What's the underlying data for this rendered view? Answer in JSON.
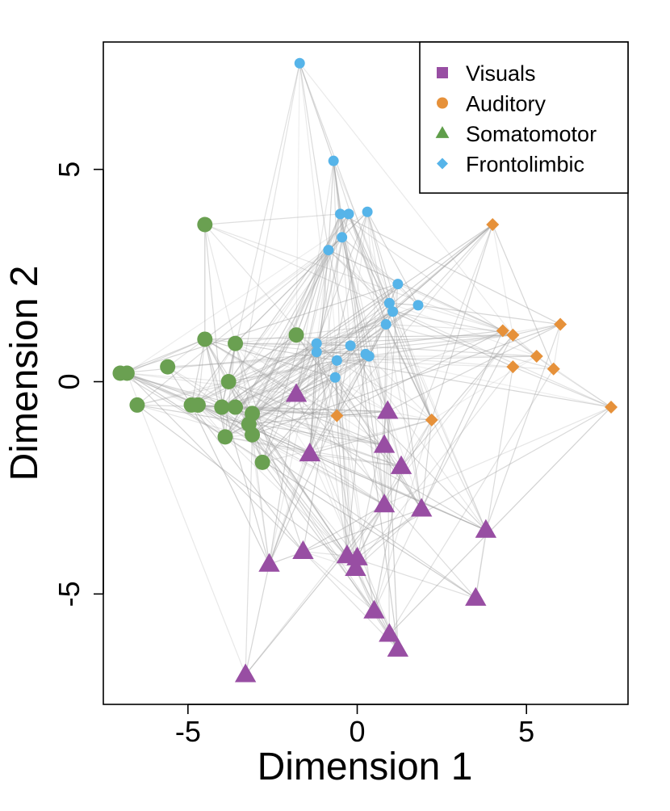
{
  "chart_data": {
    "type": "scatter",
    "xlabel": "Dimension 1",
    "ylabel": "Dimension 2",
    "xlim": [
      -7.5,
      8
    ],
    "ylim": [
      -7.6,
      8
    ],
    "x_ticks": [
      -5,
      0,
      5
    ],
    "y_ticks": [
      -5,
      0,
      5
    ],
    "x_tick_labels": [
      "-5",
      "0",
      "5"
    ],
    "y_tick_labels": [
      "-5",
      "0",
      "5"
    ],
    "grid": false,
    "legend_position": "top-right",
    "legend": [
      {
        "label": "Visuals",
        "marker": "square",
        "color": "#984ea3"
      },
      {
        "label": "Auditory",
        "marker": "circle",
        "color": "#e6913a"
      },
      {
        "label": "Somatomotor",
        "marker": "triangle",
        "color": "#5f9e4a"
      },
      {
        "label": "Frontolimbic",
        "marker": "diamond",
        "color": "#56b4e9"
      }
    ],
    "edge_color": "#9e9e9e",
    "series": [
      {
        "group": "somatomotor",
        "marker": "circle",
        "color": "#6aa051",
        "points": [
          [
            -4.5,
            3.7
          ],
          [
            -4.5,
            1.0
          ],
          [
            -3.6,
            0.9
          ],
          [
            -1.8,
            1.1
          ],
          [
            -7.0,
            0.2
          ],
          [
            -6.8,
            0.2
          ],
          [
            -5.6,
            0.35
          ],
          [
            -3.8,
            0.0
          ],
          [
            -6.5,
            -0.55
          ],
          [
            -4.9,
            -0.55
          ],
          [
            -4.7,
            -0.55
          ],
          [
            -4.0,
            -0.6
          ],
          [
            -3.6,
            -0.6
          ],
          [
            -3.1,
            -0.75
          ],
          [
            -3.2,
            -1.0
          ],
          [
            -3.1,
            -1.25
          ],
          [
            -3.9,
            -1.3
          ],
          [
            -2.8,
            -1.9
          ]
        ]
      },
      {
        "group": "frontolimbic",
        "marker": "circle",
        "color": "#56b4e9",
        "points": [
          [
            -1.7,
            7.5
          ],
          [
            -0.7,
            5.2
          ],
          [
            -0.5,
            3.95
          ],
          [
            -0.25,
            3.95
          ],
          [
            0.3,
            4.0
          ],
          [
            -0.45,
            3.4
          ],
          [
            -0.85,
            3.1
          ],
          [
            1.2,
            2.3
          ],
          [
            1.8,
            1.8
          ],
          [
            0.95,
            1.85
          ],
          [
            1.05,
            1.65
          ],
          [
            0.85,
            1.35
          ],
          [
            -1.2,
            0.9
          ],
          [
            -1.2,
            0.7
          ],
          [
            -0.2,
            0.85
          ],
          [
            -0.6,
            0.5
          ],
          [
            0.25,
            0.65
          ],
          [
            0.35,
            0.6
          ],
          [
            -0.65,
            0.1
          ]
        ]
      },
      {
        "group": "auditory",
        "marker": "diamond",
        "color": "#e6913a",
        "points": [
          [
            4.0,
            3.7
          ],
          [
            4.3,
            1.2
          ],
          [
            4.6,
            1.1
          ],
          [
            6.0,
            1.35
          ],
          [
            5.3,
            0.6
          ],
          [
            4.6,
            0.35
          ],
          [
            5.8,
            0.3
          ],
          [
            7.5,
            -0.6
          ],
          [
            2.2,
            -0.9
          ],
          [
            -0.6,
            -0.8
          ]
        ]
      },
      {
        "group": "visuals",
        "marker": "triangle",
        "color": "#984ea3",
        "points": [
          [
            -1.8,
            -0.3
          ],
          [
            0.9,
            -0.7
          ],
          [
            0.8,
            -1.5
          ],
          [
            -1.4,
            -1.7
          ],
          [
            1.3,
            -2.0
          ],
          [
            0.8,
            -2.9
          ],
          [
            1.9,
            -3.0
          ],
          [
            3.8,
            -3.5
          ],
          [
            -1.6,
            -4.0
          ],
          [
            -2.6,
            -4.3
          ],
          [
            -0.3,
            -4.1
          ],
          [
            0.0,
            -4.15
          ],
          [
            -0.05,
            -4.4
          ],
          [
            3.5,
            -5.1
          ],
          [
            0.5,
            -5.4
          ],
          [
            0.95,
            -5.95
          ],
          [
            1.2,
            -6.3
          ],
          [
            -3.3,
            -6.9
          ]
        ]
      }
    ]
  }
}
